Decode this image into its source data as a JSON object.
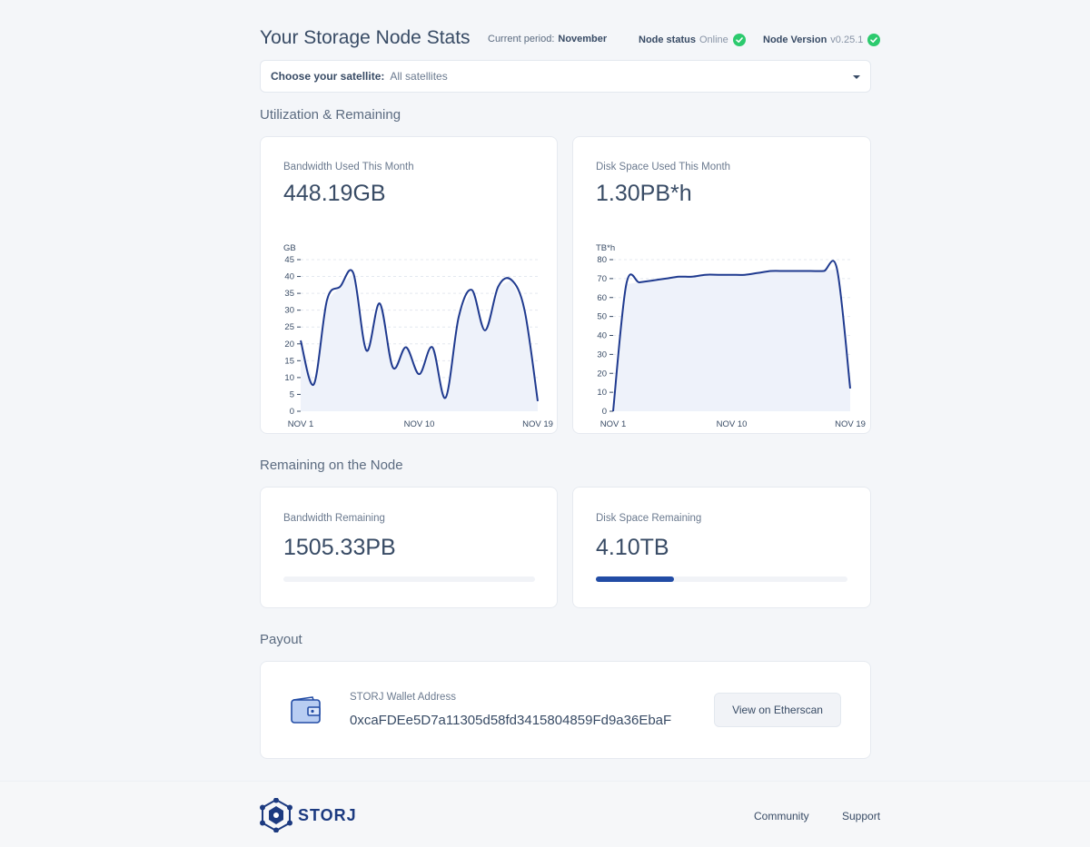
{
  "header": {
    "title": "Your Storage Node Stats",
    "period_label": "Current period:",
    "period_value": "November",
    "status_label": "Node status",
    "status_value": "Online",
    "version_label": "Node Version",
    "version_value": "v0.25.1"
  },
  "satellite": {
    "label": "Choose your satellite:",
    "value": "All satellites"
  },
  "sections": {
    "utilization": "Utilization & Remaining",
    "remaining": "Remaining on the Node",
    "payout": "Payout"
  },
  "bandwidth_used": {
    "label": "Bandwidth Used This Month",
    "value": "448.19GB"
  },
  "disk_used": {
    "label": "Disk Space Used This Month",
    "value": "1.30PB*h"
  },
  "bandwidth_remaining": {
    "label": "Bandwidth Remaining",
    "value": "1505.33PB",
    "fill_fraction": 0
  },
  "disk_remaining": {
    "label": "Disk Space Remaining",
    "value": "4.10TB",
    "fill_fraction": 0.31
  },
  "chart_data": [
    {
      "type": "area",
      "ylabel": "GB",
      "ylim": [
        0,
        45
      ],
      "yticks": [
        0,
        5,
        10,
        15,
        20,
        25,
        30,
        35,
        40,
        45
      ],
      "x": [
        1,
        2,
        3,
        4,
        5,
        6,
        7,
        8,
        9,
        10,
        11,
        12,
        13,
        14,
        15,
        16,
        17,
        18,
        19
      ],
      "xtick_labels": [
        "NOV 1",
        "NOV 10",
        "NOV 19"
      ],
      "values": [
        21,
        8,
        33,
        37,
        41,
        18,
        32,
        13,
        19,
        11,
        19,
        4,
        28,
        36,
        24,
        37,
        39,
        30,
        3
      ],
      "grid": true,
      "line_color": "#1f3a8f",
      "fill_color": "#eef2fa"
    },
    {
      "type": "area",
      "ylabel": "TB*h",
      "ylim": [
        0,
        80
      ],
      "yticks": [
        0,
        10,
        20,
        30,
        40,
        50,
        60,
        70,
        80
      ],
      "x": [
        1,
        2,
        3,
        4,
        5,
        6,
        7,
        8,
        9,
        10,
        11,
        12,
        13,
        14,
        15,
        16,
        17,
        18,
        19
      ],
      "xtick_labels": [
        "NOV 1",
        "NOV 10",
        "NOV 19"
      ],
      "values": [
        0,
        67,
        68,
        69,
        70,
        71,
        71,
        72,
        72,
        72,
        72,
        73,
        74,
        74,
        74,
        74,
        74,
        75,
        12
      ],
      "grid": true,
      "line_color": "#1f3a8f",
      "fill_color": "#eef2fa"
    }
  ],
  "payout": {
    "wallet_label": "STORJ Wallet Address",
    "wallet_address": "0xcaFDEe5D7a11305d58fd3415804859Fd9a36EbaF",
    "button_label": "View on Etherscan"
  },
  "footer": {
    "logo_text": "STORJ",
    "links": [
      "Community",
      "Support"
    ]
  },
  "icons": {
    "status": "check-circle-icon",
    "version": "check-circle-icon",
    "wallet": "wallet-icon",
    "select": "chevron-down-icon",
    "logo": "storj-logo-icon"
  },
  "colors": {
    "accent": "#224ca5",
    "success": "#2cca6e",
    "background": "#f4f6f9"
  }
}
